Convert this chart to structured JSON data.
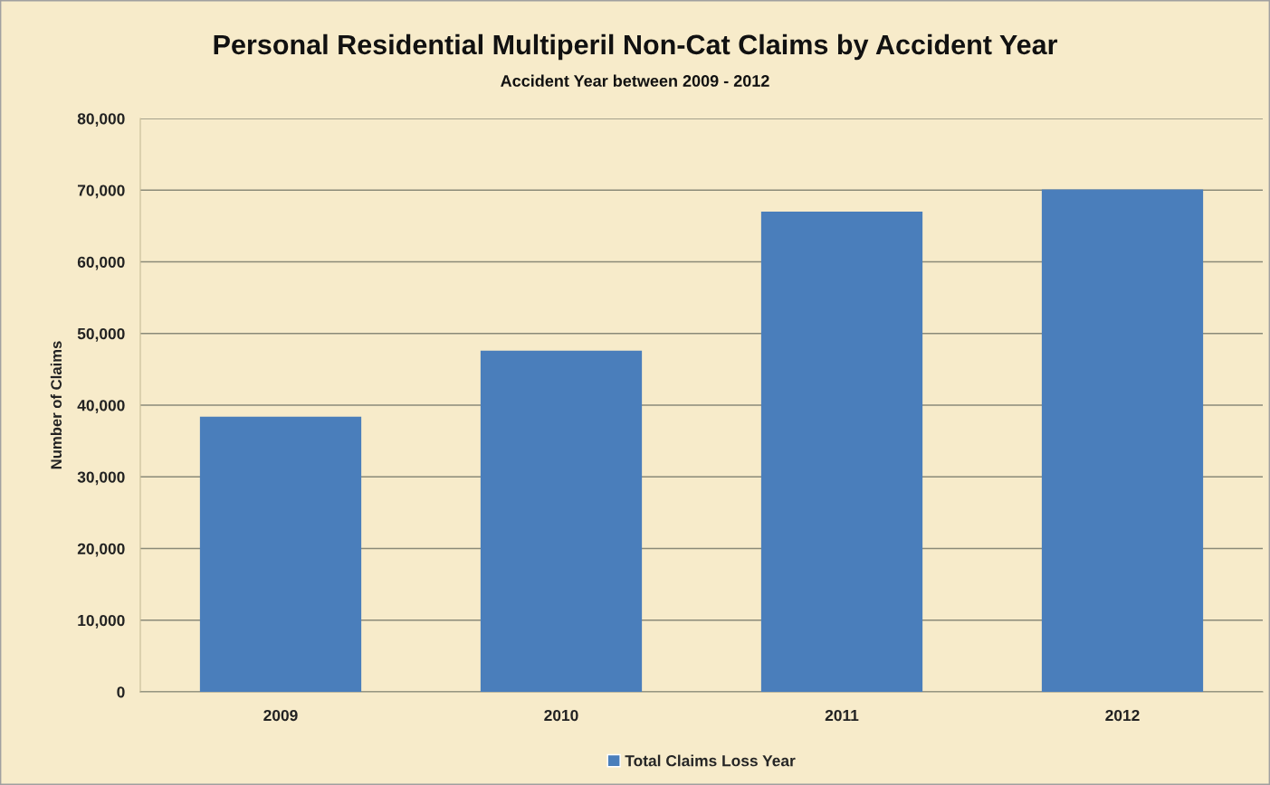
{
  "chart_data": {
    "type": "bar",
    "title": "Personal Residential Multiperil Non-Cat Claims by Accident Year",
    "subtitle": "Accident Year between 2009 - 2012",
    "ylabel": "Number of Claims",
    "categories": [
      "2009",
      "2010",
      "2011",
      "2012"
    ],
    "series": [
      {
        "name": "Total Claims Loss Year",
        "color": "#4a7ebb",
        "values": [
          38400,
          47600,
          67000,
          70100
        ]
      }
    ],
    "ylim": [
      0,
      80000
    ],
    "yticks": [
      {
        "value": 0,
        "label": "0"
      },
      {
        "value": 10000,
        "label": "10,000"
      },
      {
        "value": 20000,
        "label": "20,000"
      },
      {
        "value": 30000,
        "label": "30,000"
      },
      {
        "value": 40000,
        "label": "40,000"
      },
      {
        "value": 50000,
        "label": "50,000"
      },
      {
        "value": 60000,
        "label": "60,000"
      },
      {
        "value": 70000,
        "label": "70,000"
      },
      {
        "value": 80000,
        "label": "80,000"
      }
    ],
    "grid": "y",
    "legend": "bottom"
  }
}
